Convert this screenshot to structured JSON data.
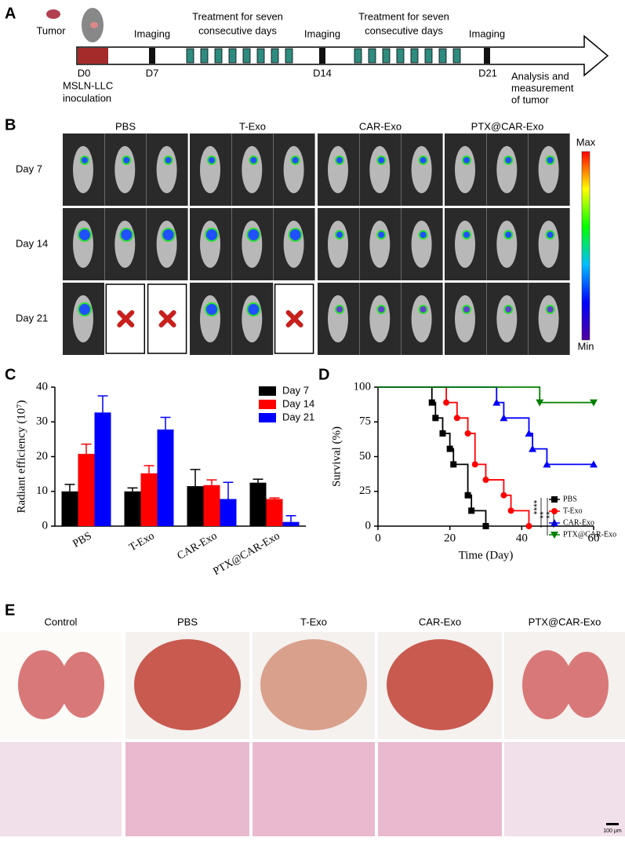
{
  "panel_labels": [
    "A",
    "B",
    "C",
    "D",
    "E"
  ],
  "timeline": {
    "tumor": "Tumor",
    "days": [
      "D0",
      "D7",
      "D14",
      "D21"
    ],
    "imaging": [
      "Imaging",
      "Imaging",
      "Imaging"
    ],
    "treatment": [
      [
        "Treatment for seven",
        "consecutive days"
      ],
      [
        "Treatment for seven",
        "consecutive days"
      ]
    ],
    "inoculation": [
      "MSLN-LLC",
      "inoculation"
    ],
    "analysis": [
      "Analysis and",
      "measurement",
      "of tumor"
    ]
  },
  "imaging": {
    "groups": [
      "PBS",
      "T-Exo",
      "CAR-Exo",
      "PTX@CAR-Exo"
    ],
    "days": [
      "Day 7",
      "Day 14",
      "Day 21"
    ],
    "scale_max": "Max",
    "scale_min": "Min"
  },
  "chart_data": [
    {
      "type": "bar",
      "ylabel": "Radiant efficiency (10⁷)",
      "categories": [
        "PBS",
        "T-Exo",
        "CAR-Exo",
        "PTX@CAR-Exo"
      ],
      "ylim": [
        0,
        40
      ],
      "yticks": [
        0,
        10,
        20,
        30,
        40
      ],
      "legend": "upper right",
      "series": [
        {
          "name": "Day 7",
          "color": "#000000",
          "values": [
            10,
            10,
            11.5,
            12.5
          ],
          "errors": [
            2,
            1,
            4.8,
            1
          ]
        },
        {
          "name": "Day 14",
          "color": "#ff0000",
          "values": [
            20.8,
            15.2,
            11.8,
            7.8
          ],
          "errors": [
            2.8,
            2.2,
            1.5,
            0.3
          ]
        },
        {
          "name": "Day 21",
          "color": "#0000ff",
          "values": [
            32.7,
            27.8,
            7.8,
            1.2
          ],
          "errors": [
            4.8,
            3.5,
            4.8,
            1.8
          ]
        }
      ]
    },
    {
      "type": "line",
      "xlabel": "Time (Day)",
      "ylabel": "Survival (%)",
      "xlim": [
        0,
        60
      ],
      "xticks": [
        0,
        20,
        40,
        60
      ],
      "ylim": [
        0,
        100
      ],
      "yticks": [
        0,
        25,
        50,
        75,
        100
      ],
      "legend": "lower right",
      "annotations": [
        "****",
        "**",
        "**"
      ],
      "series": [
        {
          "name": "PBS",
          "color": "#000000",
          "marker": "square",
          "x": [
            0,
            15,
            16,
            18,
            20,
            21,
            25,
            26,
            30
          ],
          "values": [
            100,
            88.9,
            77.8,
            66.7,
            55.6,
            44.4,
            22.2,
            11.1,
            0
          ]
        },
        {
          "name": "T-Exo",
          "color": "#ff0000",
          "marker": "circle",
          "x": [
            0,
            19,
            22,
            25,
            27,
            30,
            35,
            37,
            42
          ],
          "values": [
            100,
            88.9,
            77.8,
            66.7,
            44.4,
            33.3,
            22.2,
            11.1,
            0
          ]
        },
        {
          "name": "CAR-Exo",
          "color": "#0000ff",
          "marker": "triangle",
          "x": [
            0,
            33,
            35,
            42,
            43,
            47,
            60
          ],
          "values": [
            100,
            88.9,
            77.8,
            66.7,
            55.6,
            44.4,
            44.4
          ]
        },
        {
          "name": "PTX@CAR-Exo",
          "color": "#008000",
          "marker": "triangle-down",
          "x": [
            0,
            45,
            60
          ],
          "values": [
            100,
            88.9,
            88.9
          ]
        }
      ]
    }
  ],
  "histology": {
    "groups": [
      "Control",
      "PBS",
      "T-Exo",
      "CAR-Exo",
      "PTX@CAR-Exo"
    ],
    "scale_bar": "100 μm"
  }
}
